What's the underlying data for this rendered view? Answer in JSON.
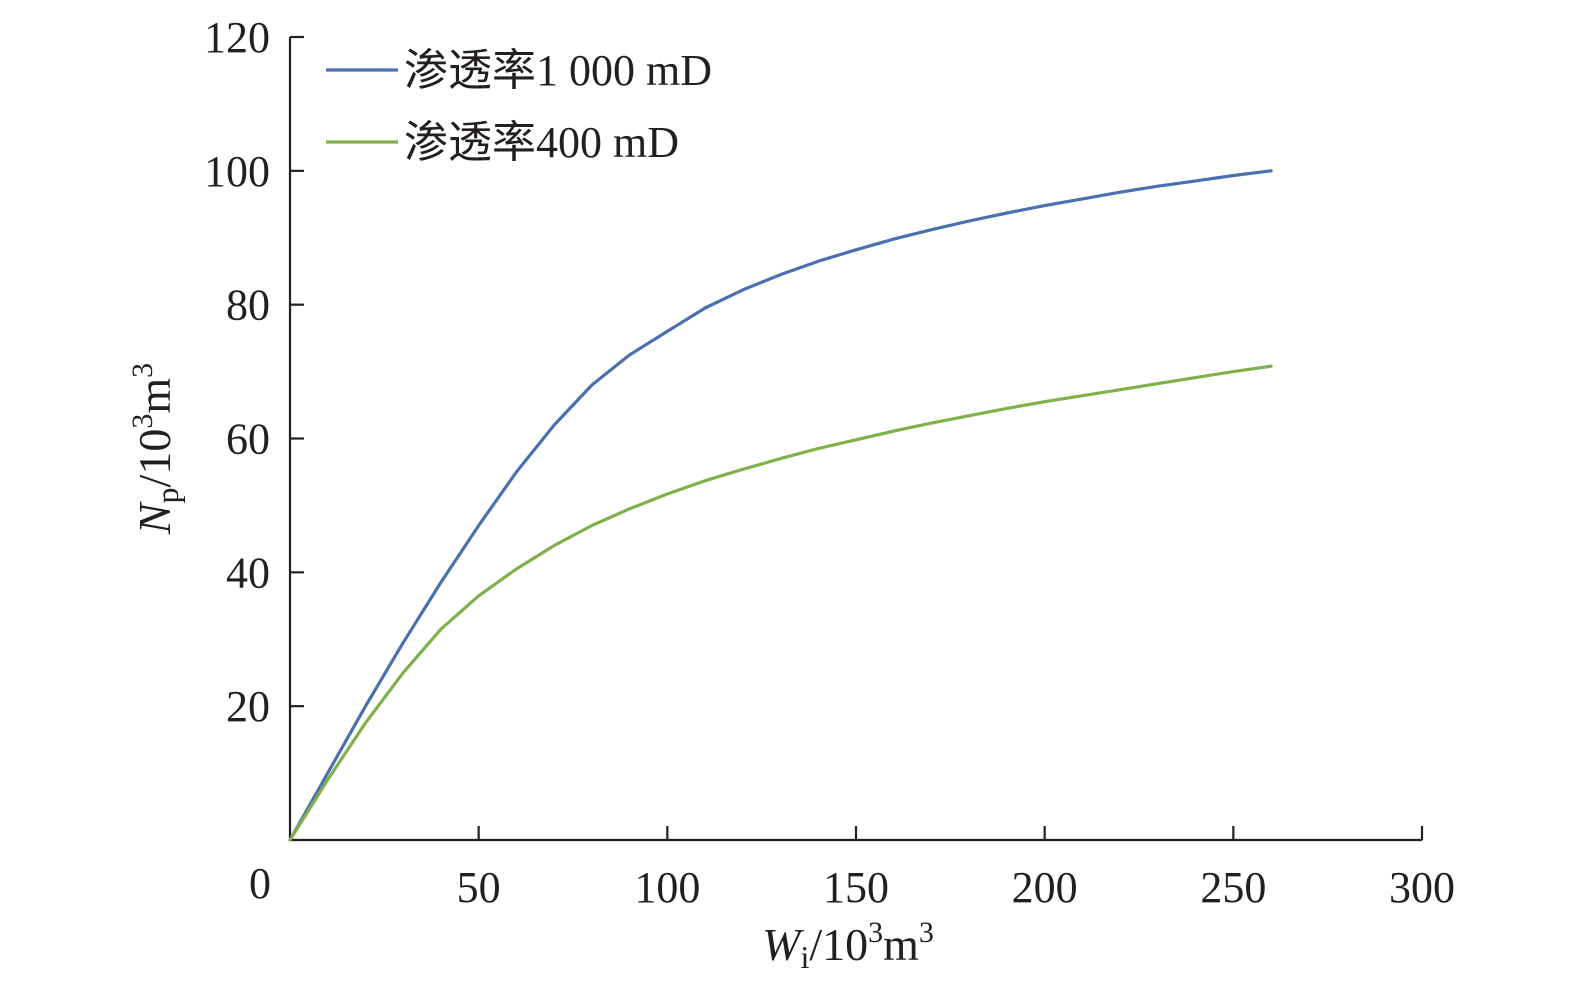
{
  "chart_data": {
    "type": "line",
    "title": "",
    "xlabel": {
      "var": "W",
      "sub": "i",
      "unit": "/10",
      "exp": "3",
      "unit2": "m",
      "exp2": "3"
    },
    "ylabel": {
      "var": "N",
      "sub": "p",
      "unit": "/10",
      "exp": "3",
      "unit2": "m",
      "exp2": "3"
    },
    "xlim": [
      0,
      300
    ],
    "ylim": [
      0,
      120
    ],
    "x_ticks": [
      0,
      50,
      100,
      150,
      200,
      250,
      300
    ],
    "x_tick_labels": [
      "0",
      "50",
      "100",
      "150",
      "200",
      "250",
      "300"
    ],
    "y_ticks": [
      20,
      40,
      60,
      80,
      100,
      120
    ],
    "y_tick_labels": [
      "20",
      "40",
      "60",
      "80",
      "100",
      "120"
    ],
    "grid": false,
    "legend_position": "top-left",
    "series": [
      {
        "name": "渗透率1 000 mD",
        "color": "#4a70b0",
        "x": [
          0,
          10,
          20,
          30,
          40,
          50,
          60,
          70,
          80,
          90,
          100,
          110,
          120,
          130,
          140,
          150,
          160,
          170,
          180,
          190,
          200,
          210,
          220,
          230,
          240,
          250,
          260
        ],
        "y": [
          0,
          10,
          20,
          29.5,
          38.5,
          47,
          55,
          62,
          68,
          72.5,
          76,
          79.5,
          82.2,
          84.5,
          86.5,
          88.2,
          89.8,
          91.2,
          92.5,
          93.7,
          94.8,
          95.8,
          96.8,
          97.7,
          98.5,
          99.3,
          100
        ]
      },
      {
        "name": "渗透率400 mD",
        "color": "#7fb04a",
        "x": [
          0,
          10,
          20,
          30,
          40,
          50,
          60,
          70,
          80,
          90,
          100,
          110,
          120,
          130,
          140,
          150,
          160,
          170,
          180,
          190,
          200,
          210,
          220,
          230,
          240,
          250,
          260
        ],
        "y": [
          0,
          9,
          17.5,
          25,
          31.5,
          36.5,
          40.5,
          44,
          47,
          49.5,
          51.7,
          53.7,
          55.4,
          57,
          58.5,
          59.8,
          61.1,
          62.3,
          63.4,
          64.5,
          65.5,
          66.4,
          67.3,
          68.2,
          69.1,
          70,
          70.8
        ]
      }
    ]
  }
}
